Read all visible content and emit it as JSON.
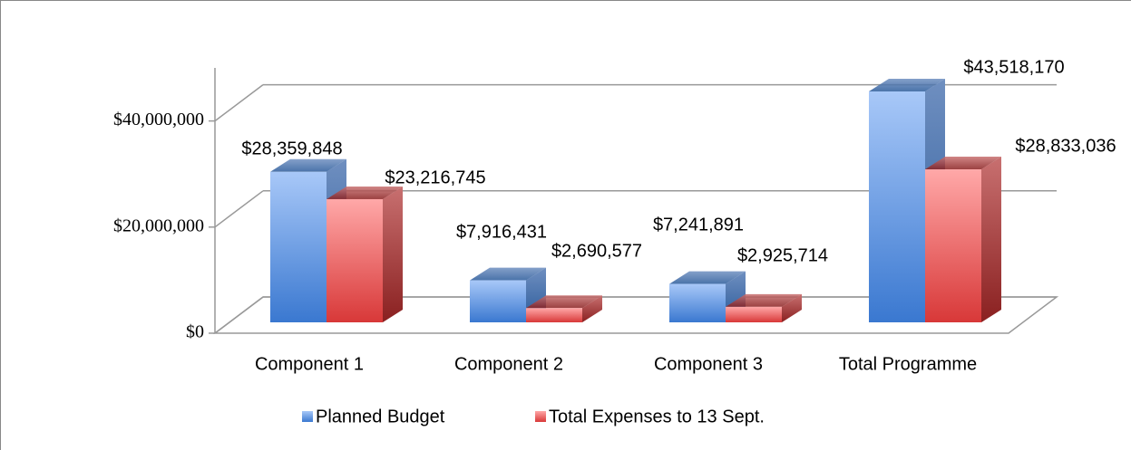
{
  "chart_data": {
    "type": "bar3d",
    "categories": [
      "Component 1",
      "Component 2",
      "Component 3",
      "Total Programme"
    ],
    "series": [
      {
        "name": "Planned Budget",
        "color": "#4a86d8",
        "values": [
          28359848,
          7916431,
          7241891,
          43518170
        ],
        "value_labels": [
          "$28,359,848",
          "$7,916,431",
          "$7,241,891",
          "$43,518,170"
        ]
      },
      {
        "name": "Total Expenses to 13 Sept.",
        "color": "#e04848",
        "values": [
          23216745,
          2690577,
          2925714,
          28833036
        ],
        "value_labels": [
          "$23,216,745",
          "$2,690,577",
          "$2,925,714",
          "$28,833,036"
        ]
      }
    ],
    "ylim": [
      0,
      50000000
    ],
    "yticks": [
      {
        "value": 0,
        "label": "$0"
      },
      {
        "value": 20000000,
        "label": "$20,000,000"
      },
      {
        "value": 40000000,
        "label": "$40,000,000"
      }
    ],
    "grid": true,
    "legend": "bottom"
  }
}
